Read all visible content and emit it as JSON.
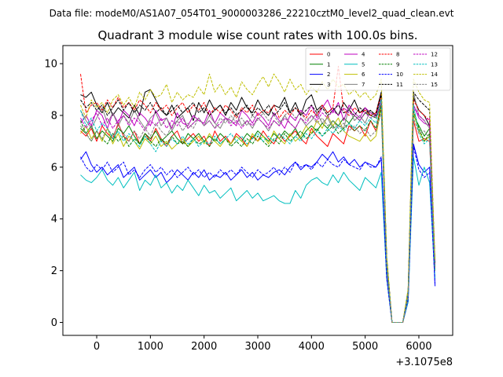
{
  "suptitle": "Data file: modeM0/AS1A07_054T01_9000003286_22210cztM0_level2_quad_clean.evt",
  "chart_data": {
    "type": "line",
    "title": "Quadrant 3 module wise count rates with 100.0s bins.",
    "xlabel": "",
    "ylabel": "",
    "x_offset_label": "+3.1075e8",
    "xlim": [
      -630,
      6630
    ],
    "ylim": [
      -0.5,
      10.7
    ],
    "xticks": [
      0,
      1000,
      2000,
      3000,
      4000,
      5000,
      6000
    ],
    "xtick_labels": [
      "0",
      "1000",
      "2000",
      "3000",
      "4000",
      "5000",
      "6000"
    ],
    "yticks": [
      0,
      2,
      4,
      6,
      8,
      10
    ],
    "ytick_labels": [
      "0",
      "2",
      "4",
      "6",
      "8",
      "10"
    ],
    "legend_position": "top-right",
    "x": [
      -300,
      -200,
      -100,
      0,
      100,
      200,
      300,
      400,
      500,
      600,
      700,
      800,
      900,
      1000,
      1100,
      1200,
      1300,
      1400,
      1500,
      1600,
      1700,
      1800,
      1900,
      2000,
      2100,
      2200,
      2300,
      2400,
      2500,
      2600,
      2700,
      2800,
      2900,
      3000,
      3100,
      3200,
      3300,
      3400,
      3500,
      3600,
      3700,
      3800,
      3900,
      4000,
      4100,
      4200,
      4300,
      4400,
      4500,
      4600,
      4700,
      4800,
      4900,
      5000,
      5100,
      5200,
      5300,
      5400,
      5500,
      5600,
      5700,
      5800,
      5900,
      6000,
      6100,
      6200,
      6300
    ],
    "series": [
      {
        "name": "0",
        "color": "#ff0000",
        "dash": "solid",
        "values": [
          7.4,
          7.2,
          7.5,
          7.0,
          7.6,
          7.3,
          7.1,
          7.7,
          7.2,
          7.0,
          7.4,
          6.9,
          7.3,
          7.0,
          7.5,
          7.1,
          6.8,
          7.2,
          7.4,
          6.9,
          7.1,
          7.3,
          7.0,
          7.2,
          6.8,
          7.4,
          7.0,
          7.2,
          6.9,
          7.3,
          7.1,
          6.8,
          7.2,
          7.0,
          7.4,
          7.1,
          6.9,
          7.3,
          7.0,
          7.2,
          7.4,
          7.1,
          6.9,
          7.5,
          7.2,
          7.0,
          6.8,
          7.3,
          7.1,
          6.9,
          7.6,
          7.4,
          7.6,
          7.2,
          7.8,
          7.4,
          8.5,
          2.2,
          0.0,
          0.0,
          0.0,
          1.0,
          7.8,
          7.0,
          7.1,
          7.0,
          2.0
        ]
      },
      {
        "name": "1",
        "color": "#008000",
        "dash": "solid",
        "values": [
          7.5,
          7.3,
          7.6,
          7.1,
          7.4,
          7.2,
          7.0,
          7.5,
          7.3,
          7.6,
          7.2,
          6.9,
          7.3,
          7.1,
          7.4,
          7.0,
          7.2,
          7.4,
          7.1,
          6.9,
          7.3,
          7.1,
          7.3,
          7.0,
          7.2,
          7.0,
          7.3,
          7.1,
          6.9,
          7.2,
          7.0,
          7.3,
          7.1,
          7.4,
          7.2,
          7.0,
          7.3,
          7.1,
          7.4,
          7.2,
          7.5,
          7.1,
          7.4,
          7.6,
          7.4,
          7.7,
          7.5,
          7.8,
          7.6,
          7.9,
          7.7,
          8.0,
          7.8,
          8.1,
          8.0,
          7.9,
          8.4,
          2.3,
          0.0,
          0.0,
          0.0,
          1.1,
          8.0,
          7.6,
          7.2,
          7.5,
          2.0
        ]
      },
      {
        "name": "2",
        "color": "#0000ff",
        "dash": "solid",
        "values": [
          6.3,
          6.6,
          6.1,
          5.8,
          6.0,
          5.7,
          5.9,
          6.1,
          5.6,
          5.8,
          6.0,
          5.5,
          5.7,
          5.9,
          5.6,
          5.8,
          5.4,
          5.6,
          5.9,
          5.7,
          5.5,
          5.8,
          5.6,
          5.9,
          5.5,
          5.7,
          5.6,
          5.8,
          5.5,
          5.7,
          5.9,
          5.6,
          5.8,
          5.5,
          5.7,
          5.6,
          5.8,
          5.9,
          5.7,
          6.0,
          6.2,
          5.9,
          6.1,
          6.0,
          6.2,
          6.5,
          6.3,
          6.6,
          6.2,
          6.4,
          6.1,
          6.3,
          6.0,
          6.2,
          6.1,
          6.0,
          6.3,
          1.8,
          0.0,
          0.0,
          0.0,
          0.8,
          6.9,
          6.1,
          5.8,
          6.0,
          1.4
        ]
      },
      {
        "name": "3",
        "color": "#000000",
        "dash": "solid",
        "values": [
          8.8,
          8.7,
          8.9,
          8.4,
          8.1,
          8.5,
          8.0,
          8.3,
          8.1,
          7.9,
          8.4,
          8.0,
          8.9,
          9.0,
          8.6,
          8.2,
          8.0,
          8.4,
          7.9,
          8.1,
          8.3,
          7.8,
          8.5,
          8.1,
          8.6,
          8.2,
          8.4,
          8.0,
          8.5,
          8.2,
          8.7,
          8.3,
          8.1,
          8.6,
          8.2,
          8.0,
          8.4,
          8.3,
          8.7,
          8.1,
          8.5,
          8.0,
          8.6,
          8.8,
          8.2,
          8.4,
          8.1,
          8.3,
          8.0,
          8.5,
          8.2,
          8.6,
          8.1,
          8.3,
          8.0,
          8.1,
          8.9,
          2.5,
          0.0,
          0.0,
          0.0,
          1.2,
          8.7,
          8.2,
          8.0,
          7.6,
          2.3
        ]
      },
      {
        "name": "4",
        "color": "#bf00bf",
        "dash": "solid",
        "values": [
          7.7,
          8.0,
          7.6,
          8.2,
          8.0,
          7.5,
          8.1,
          7.7,
          8.2,
          8.0,
          7.6,
          8.1,
          7.9,
          7.6,
          8.2,
          7.8,
          7.9,
          7.5,
          8.1,
          7.7,
          7.6,
          8.0,
          7.8,
          7.7,
          8.2,
          7.7,
          8.1,
          7.9,
          7.8,
          7.6,
          8.2,
          8.0,
          7.7,
          8.1,
          7.9,
          7.6,
          8.1,
          7.8,
          7.5,
          8.0,
          7.8,
          8.2,
          8.0,
          8.4,
          7.9,
          8.3,
          8.6,
          8.1,
          8.5,
          7.8,
          8.4,
          8.1,
          7.9,
          8.3,
          8.1,
          8.0,
          8.6,
          2.4,
          0.0,
          0.0,
          0.0,
          1.1,
          8.4,
          7.9,
          7.7,
          7.6,
          2.2
        ]
      },
      {
        "name": "5",
        "color": "#00bfbf",
        "dash": "solid",
        "values": [
          5.7,
          5.5,
          5.4,
          5.6,
          5.9,
          5.5,
          5.3,
          5.6,
          5.2,
          5.5,
          5.8,
          5.1,
          5.5,
          5.3,
          5.7,
          5.2,
          5.4,
          5.0,
          5.3,
          5.1,
          5.5,
          5.2,
          4.9,
          5.3,
          5.0,
          5.1,
          4.8,
          5.0,
          5.2,
          4.7,
          4.9,
          5.1,
          4.8,
          5.0,
          4.7,
          4.8,
          4.9,
          4.7,
          4.6,
          4.6,
          5.1,
          4.8,
          5.3,
          5.5,
          5.6,
          5.4,
          5.3,
          5.7,
          5.4,
          5.8,
          5.5,
          5.3,
          5.1,
          5.6,
          5.4,
          5.2,
          5.8,
          1.7,
          0.0,
          0.0,
          0.0,
          0.8,
          6.4,
          5.3,
          6.0,
          5.4,
          1.7
        ]
      },
      {
        "name": "6",
        "color": "#bfbf00",
        "dash": "solid",
        "values": [
          7.3,
          7.6,
          7.1,
          7.4,
          7.0,
          7.5,
          6.9,
          7.3,
          6.8,
          7.2,
          7.0,
          6.7,
          7.1,
          6.9,
          7.2,
          6.8,
          7.0,
          6.7,
          6.9,
          7.1,
          6.8,
          7.0,
          7.2,
          6.9,
          7.3,
          7.0,
          6.8,
          7.1,
          6.9,
          7.2,
          7.0,
          6.8,
          7.3,
          7.0,
          7.2,
          6.9,
          7.4,
          7.1,
          6.9,
          7.3,
          7.0,
          7.2,
          7.6,
          7.3,
          7.8,
          7.5,
          8.0,
          7.6,
          7.9,
          7.4,
          7.2,
          7.1,
          7.0,
          7.3,
          7.0,
          7.2,
          8.3,
          2.2,
          0.0,
          0.0,
          0.0,
          1.0,
          8.1,
          7.4,
          7.0,
          7.2,
          2.0
        ]
      },
      {
        "name": "7",
        "color": "#808080",
        "dash": "solid",
        "values": [
          8.2,
          7.8,
          7.5,
          7.9,
          8.3,
          7.7,
          8.1,
          7.6,
          8.0,
          7.7,
          8.2,
          7.8,
          7.5,
          7.9,
          8.1,
          7.6,
          7.9,
          7.4,
          7.8,
          8.0,
          7.5,
          7.7,
          7.9,
          7.6,
          8.0,
          7.7,
          7.5,
          7.9,
          7.7,
          8.1,
          7.6,
          7.8,
          7.5,
          7.9,
          7.7,
          7.4,
          7.8,
          7.6,
          8.0,
          7.7,
          7.5,
          7.9,
          7.6,
          7.8,
          8.1,
          7.7,
          7.9,
          7.5,
          7.6,
          7.5,
          8.3,
          7.8,
          8.0,
          7.7,
          8.2,
          7.9,
          8.8,
          2.5,
          0.0,
          0.0,
          0.0,
          1.2,
          8.9,
          8.0,
          7.8,
          7.5,
          2.2
        ]
      },
      {
        "name": "8",
        "color": "#ff0000",
        "dash": "dashed",
        "values": [
          9.6,
          8.1,
          8.4,
          8.5,
          8.2,
          8.6,
          8.3,
          8.7,
          8.3,
          8.5,
          8.2,
          8.6,
          8.4,
          8.1,
          8.5,
          8.2,
          8.4,
          8.0,
          8.3,
          8.5,
          8.1,
          8.4,
          8.2,
          8.5,
          8.0,
          8.3,
          8.1,
          8.4,
          8.2,
          7.9,
          8.3,
          8.1,
          8.4,
          8.0,
          8.2,
          8.1,
          8.4,
          7.9,
          8.2,
          8.0,
          8.3,
          8.1,
          7.9,
          8.2,
          8.0,
          8.4,
          8.1,
          8.3,
          9.9,
          8.2,
          8.0,
          8.3,
          8.1,
          8.2,
          8.0,
          8.1,
          8.8,
          2.4,
          0.0,
          0.0,
          0.0,
          1.1,
          8.6,
          8.2,
          8.0,
          7.8,
          2.1
        ]
      },
      {
        "name": "9",
        "color": "#008000",
        "dash": "dashed",
        "values": [
          7.8,
          7.3,
          7.0,
          7.4,
          7.1,
          6.9,
          7.3,
          7.0,
          7.2,
          6.8,
          7.1,
          6.9,
          7.2,
          7.0,
          6.8,
          7.1,
          6.9,
          7.2,
          6.9,
          7.0,
          6.8,
          7.1,
          6.9,
          7.0,
          6.8,
          7.1,
          6.9,
          7.1,
          6.8,
          7.0,
          6.8,
          7.1,
          6.9,
          7.2,
          7.0,
          6.8,
          7.1,
          6.9,
          7.3,
          7.0,
          7.2,
          7.4,
          7.1,
          7.3,
          7.5,
          7.2,
          7.4,
          7.6,
          7.3,
          7.5,
          7.7,
          7.4,
          7.6,
          7.4,
          7.8,
          7.5,
          8.3,
          2.3,
          0.0,
          0.0,
          0.0,
          1.0,
          8.2,
          7.5,
          7.0,
          7.3,
          2.0
        ]
      },
      {
        "name": "10",
        "color": "#0000ff",
        "dash": "dashed",
        "values": [
          6.4,
          6.0,
          5.8,
          6.1,
          5.9,
          6.2,
          5.8,
          6.0,
          6.2,
          5.7,
          5.9,
          5.6,
          5.9,
          6.1,
          5.8,
          6.0,
          5.7,
          5.9,
          5.6,
          5.8,
          6.0,
          5.7,
          5.9,
          5.6,
          5.8,
          5.6,
          5.9,
          5.7,
          5.9,
          5.7,
          6.0,
          5.8,
          5.6,
          5.9,
          5.7,
          5.8,
          6.0,
          5.7,
          6.0,
          5.8,
          6.2,
          6.0,
          6.1,
          5.9,
          6.2,
          6.0,
          6.3,
          6.1,
          6.0,
          6.3,
          6.1,
          6.0,
          5.9,
          6.2,
          6.0,
          6.0,
          6.4,
          1.7,
          0.0,
          0.0,
          0.0,
          0.9,
          6.8,
          5.9,
          5.6,
          5.8,
          1.5
        ]
      },
      {
        "name": "11",
        "color": "#000000",
        "dash": "dashed",
        "values": [
          8.6,
          8.3,
          8.5,
          8.2,
          8.4,
          8.0,
          8.3,
          8.6,
          8.2,
          8.5,
          8.1,
          8.4,
          8.2,
          8.5,
          8.1,
          8.3,
          8.0,
          8.2,
          8.4,
          8.1,
          8.3,
          8.5,
          8.1,
          8.3,
          8.0,
          8.2,
          8.4,
          8.1,
          8.3,
          8.0,
          8.2,
          8.4,
          8.0,
          8.3,
          8.1,
          8.4,
          8.0,
          8.2,
          8.5,
          8.1,
          8.3,
          8.0,
          8.2,
          8.4,
          8.1,
          8.3,
          8.0,
          8.2,
          8.4,
          8.1,
          8.2,
          8.0,
          8.3,
          8.1,
          8.2,
          8.0,
          8.8,
          2.5,
          0.0,
          0.0,
          0.0,
          1.2,
          8.9,
          8.6,
          8.4,
          8.2,
          2.3
        ]
      },
      {
        "name": "12",
        "color": "#bf00bf",
        "dash": "dashed",
        "values": [
          7.9,
          7.5,
          7.8,
          8.1,
          7.6,
          7.9,
          7.5,
          7.8,
          8.0,
          7.6,
          7.9,
          7.7,
          7.4,
          7.8,
          7.6,
          7.9,
          7.5,
          7.8,
          7.6,
          7.9,
          7.5,
          7.7,
          7.9,
          7.6,
          7.8,
          7.5,
          7.7,
          7.9,
          7.6,
          7.8,
          7.5,
          7.8,
          7.6,
          7.9,
          7.7,
          7.5,
          7.8,
          7.6,
          7.9,
          7.7,
          7.5,
          7.9,
          7.7,
          8.0,
          7.8,
          8.1,
          7.9,
          8.2,
          8.0,
          8.3,
          8.1,
          8.0,
          7.8,
          8.1,
          7.9,
          8.0,
          8.5,
          2.3,
          0.0,
          0.0,
          0.0,
          1.0,
          8.4,
          8.0,
          7.8,
          7.9,
          2.1
        ]
      },
      {
        "name": "13",
        "color": "#00bfbf",
        "dash": "dashed",
        "values": [
          8.2,
          7.6,
          7.9,
          7.4,
          7.7,
          7.5,
          7.1,
          7.4,
          7.0,
          7.3,
          7.0,
          6.8,
          7.2,
          6.9,
          6.6,
          7.0,
          6.8,
          7.1,
          6.9,
          7.2,
          6.9,
          7.1,
          6.8,
          7.0,
          6.9,
          7.2,
          6.9,
          7.1,
          7.3,
          7.0,
          7.2,
          6.9,
          7.1,
          7.3,
          7.0,
          7.2,
          7.0,
          7.3,
          7.1,
          6.9,
          7.2,
          7.0,
          7.3,
          7.1,
          7.4,
          7.2,
          7.5,
          7.3,
          7.6,
          7.4,
          7.7,
          7.5,
          7.8,
          7.6,
          7.9,
          7.7,
          8.6,
          2.4,
          0.0,
          0.0,
          0.0,
          1.1,
          8.4,
          7.3,
          6.9,
          7.1,
          2.0
        ]
      },
      {
        "name": "14",
        "color": "#bfbf00",
        "dash": "dashed",
        "values": [
          8.4,
          7.9,
          8.6,
          8.3,
          8.5,
          8.1,
          8.6,
          8.8,
          8.4,
          8.7,
          8.3,
          8.9,
          8.6,
          9.0,
          8.7,
          8.8,
          9.2,
          8.5,
          8.9,
          8.6,
          8.8,
          8.7,
          9.1,
          8.8,
          9.6,
          8.9,
          9.2,
          8.8,
          9.1,
          8.7,
          9.3,
          9.0,
          8.8,
          9.2,
          9.5,
          9.1,
          9.6,
          9.3,
          8.9,
          9.4,
          9.0,
          9.2,
          8.8,
          9.1,
          8.9,
          9.3,
          9.0,
          9.4,
          9.1,
          9.2,
          8.8,
          9.0,
          8.7,
          8.9,
          8.6,
          8.8,
          9.4,
          2.6,
          0.0,
          0.0,
          0.0,
          1.3,
          9.4,
          8.9,
          8.6,
          8.5,
          2.4
        ]
      },
      {
        "name": "15",
        "color": "#808080",
        "dash": "dashed",
        "values": [
          7.6,
          7.3,
          7.0,
          7.4,
          7.1,
          7.5,
          7.2,
          7.6,
          7.3,
          7.0,
          7.4,
          7.1,
          7.5,
          7.2,
          7.7,
          7.4,
          7.2,
          7.6,
          7.8,
          7.4,
          7.7,
          7.5,
          7.9,
          7.6,
          7.8,
          7.5,
          7.9,
          7.7,
          8.0,
          7.7,
          7.9,
          7.6,
          8.0,
          7.8,
          8.1,
          7.8,
          8.0,
          7.7,
          8.0,
          8.2,
          7.9,
          8.1,
          7.8,
          8.0,
          7.7,
          7.9,
          7.6,
          7.8,
          7.5,
          7.7,
          7.4,
          7.6,
          7.3,
          7.5,
          7.2,
          7.4,
          8.1,
          2.2,
          0.0,
          0.0,
          0.0,
          1.0,
          7.9,
          7.3,
          7.4,
          7.1,
          2.0
        ]
      }
    ]
  }
}
